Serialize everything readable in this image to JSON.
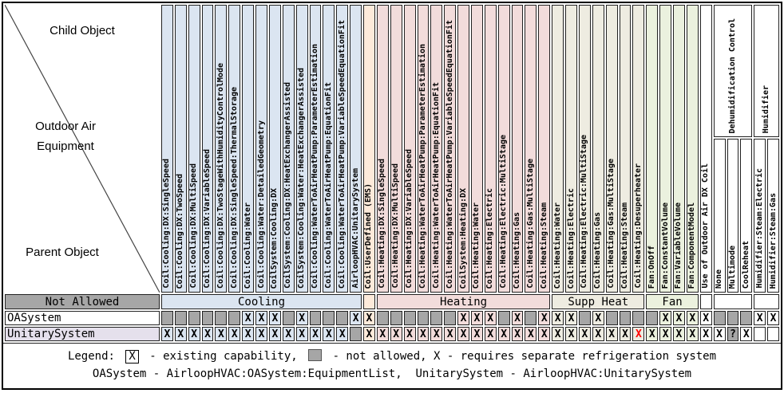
{
  "corner": {
    "child_object": "Child Object",
    "outdoor_air_line1": "Outdoor Air",
    "outdoor_air_line2": "Equipment",
    "parent_object": "Parent Object"
  },
  "colors": {
    "cooling": "#dbe5f1",
    "userdef": "#fdeada",
    "heating": "#f2dcdb",
    "suppheat": "#eeece1",
    "fan": "#ebf1de",
    "plain": "#ffffff",
    "gray": "#a6a6a6",
    "oasystem_label_bg": "#ffffff",
    "unitary_label_bg": "#e5e0ec",
    "red_x": "#ff0000"
  },
  "columns": [
    {
      "label": "Coil:Cooling:DX:SingleSpeed",
      "group": "cooling"
    },
    {
      "label": "Coil:Cooling:DX:TwoSpeed",
      "group": "cooling"
    },
    {
      "label": "Coil:Cooling:DX:MultiSpeed",
      "group": "cooling"
    },
    {
      "label": "Coil:Cooling:DX:VariableSpeed",
      "group": "cooling"
    },
    {
      "label": "Coil:Cooling:DX:TwoStageWithHumidityControlMode",
      "group": "cooling"
    },
    {
      "label": "Coil:Cooling:DX:SingleSpeed:ThermalStorage",
      "group": "cooling"
    },
    {
      "label": "Coil:Cooling:Water",
      "group": "cooling"
    },
    {
      "label": "Coil:Cooling:Water:DetailedGeometry",
      "group": "cooling"
    },
    {
      "label": "CoilSystem:Cooling:DX",
      "group": "cooling"
    },
    {
      "label": "CoilSystem:Cooling:DX:HeatExchangerAssisted",
      "group": "cooling"
    },
    {
      "label": "CoilSystem:Cooling:Water:HeatExchangerAssisted",
      "group": "cooling"
    },
    {
      "label": "Coil:Cooling:WaterToAirHeatPump:ParameterEstimation",
      "group": "cooling"
    },
    {
      "label": "Coil:Cooling:WaterToAirHeatPump:EquationFit",
      "group": "cooling"
    },
    {
      "label": "Coil:Cooling:WaterToAirHeatPump:VariableSpeedEquationFit",
      "group": "cooling"
    },
    {
      "label": "AirloopHVAC:UnitarySystem",
      "group": "cooling"
    },
    {
      "label": "Coil:UserDefined (EMS)",
      "group": "userdef"
    },
    {
      "label": "Coil:Heating:DX:SingleSpeed",
      "group": "heating"
    },
    {
      "label": "Coil:Heating:DX:MultiSpeed",
      "group": "heating"
    },
    {
      "label": "Coil:Heating:DX:VariableSpeed",
      "group": "heating"
    },
    {
      "label": "Coil:Heating:WaterToAirHeatPump:ParameterEstimation",
      "group": "heating"
    },
    {
      "label": "Coil:Heating:WaterToAirHeatPump:EquationFit",
      "group": "heating"
    },
    {
      "label": "Coil:Heating:WaterToAirHeatPump:VariableSpeedEquationFit",
      "group": "heating"
    },
    {
      "label": "CoilSystem:Heating:DX",
      "group": "heating"
    },
    {
      "label": "Coil:Heating:Water",
      "group": "heating"
    },
    {
      "label": "Coil:Heating:Electric",
      "group": "heating"
    },
    {
      "label": "Coil:Heating:Electric:MultiStage",
      "group": "heating"
    },
    {
      "label": "Coil:Heating:Gas",
      "group": "heating"
    },
    {
      "label": "Coil:Heating:Gas:MultiStage",
      "group": "heating"
    },
    {
      "label": "Coil:Heating:Steam",
      "group": "heating"
    },
    {
      "label": "Coil:Heating:Water",
      "group": "suppheat"
    },
    {
      "label": "Coil:Heating:Electric",
      "group": "suppheat"
    },
    {
      "label": "Coil:Heating:Electric:MultiStage",
      "group": "suppheat"
    },
    {
      "label": "Coil:Heating:Gas",
      "group": "suppheat"
    },
    {
      "label": "Coil:Heating:Gas:MultiStage",
      "group": "suppheat"
    },
    {
      "label": "Coil:Heating:Steam",
      "group": "suppheat"
    },
    {
      "label": "Coil:Heating:Desuperheater",
      "group": "suppheat"
    },
    {
      "label": "Fan:OnOff",
      "group": "fan"
    },
    {
      "label": "Fan:ConstantVolume",
      "group": "fan"
    },
    {
      "label": "Fan:VariableVolume",
      "group": "fan"
    },
    {
      "label": "Fan:ComponentModel",
      "group": "fan"
    },
    {
      "label": "Use of Outdoor Air DX Coil",
      "group": "plain"
    },
    {
      "label": "None",
      "group": "plain"
    },
    {
      "label": "Multimode",
      "group": "plain"
    },
    {
      "label": "CoolReheat",
      "group": "plain"
    },
    {
      "label": "Humidifier:Steam:Electric",
      "group": "plain"
    },
    {
      "label": "Humidifier:Steam:Gas",
      "group": "plain"
    }
  ],
  "top_groups": [
    {
      "label": "Dehumidification Control",
      "span": 3
    },
    {
      "label": "Humidifier",
      "span": 2
    }
  ],
  "group_row": {
    "not_allowed": "Not Allowed",
    "groups": [
      {
        "label": "Cooling",
        "color": "cooling",
        "span": 15
      },
      {
        "label": "",
        "color": "userdef",
        "span": 1
      },
      {
        "label": "Heating",
        "color": "heating",
        "span": 13
      },
      {
        "label": "Supp Heat",
        "color": "suppheat",
        "span": 7
      },
      {
        "label": "Fan",
        "color": "fan",
        "span": 4
      },
      {
        "label": "",
        "color": "plain",
        "span": 1
      },
      {
        "label": "",
        "color": "plain",
        "span": 3
      },
      {
        "label": "",
        "color": "plain",
        "span": 2
      }
    ]
  },
  "cell_codes": {
    "X": "existing capability",
    "G": "not allowed",
    "R": "red X",
    "Q": "? on not-allowed",
    "": "blank"
  },
  "rows": [
    {
      "label": "OASystem",
      "label_bg": "#ffffff",
      "cells": [
        "G",
        "G",
        "G",
        "G",
        "G",
        "G",
        "X",
        "X",
        "X",
        "G",
        "X",
        "G",
        "G",
        "G",
        "X",
        "X",
        "G",
        "G",
        "G",
        "G",
        "G",
        "G",
        "X",
        "X",
        "X",
        "G",
        "X",
        "G",
        "X",
        "X",
        "X",
        "G",
        "X",
        "G",
        "G",
        "G",
        "G",
        "X",
        "X",
        "X",
        "X",
        "G",
        "G",
        "G",
        "X",
        "X"
      ]
    },
    {
      "label": "UnitarySystem",
      "label_bg": "#e5e0ec",
      "cells": [
        "X",
        "X",
        "X",
        "X",
        "X",
        "X",
        "X",
        "X",
        "X",
        "X",
        "X",
        "X",
        "X",
        "X",
        "G",
        "X",
        "X",
        "X",
        "X",
        "X",
        "X",
        "X",
        "X",
        "X",
        "X",
        "X",
        "X",
        "X",
        "X",
        "X",
        "X",
        "X",
        "X",
        "X",
        "X",
        "R",
        "X",
        "X",
        "X",
        "X",
        "X",
        "X",
        "Q",
        "X",
        "",
        ""
      ]
    }
  ],
  "legend": {
    "prefix": "Legend:",
    "x_symbol": "X",
    "existing": "- existing capability,",
    "not_allowed": "- not allowed,",
    "refrigeration": "X - requires separate refrigeration system",
    "line2": "OASystem - AirloopHVAC:OASystem:EquipmentList,  UnitarySystem - AirloopHVAC:UnitarySystem"
  }
}
